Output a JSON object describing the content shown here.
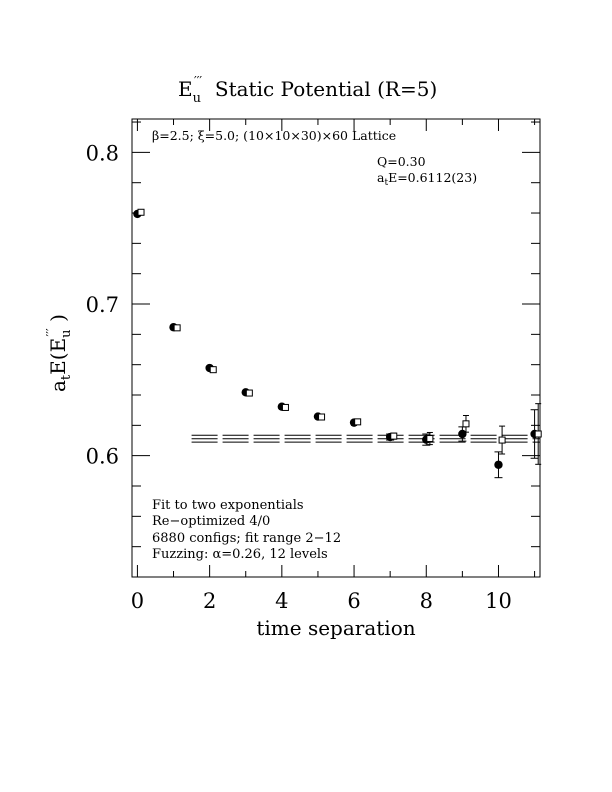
{
  "chart_data": {
    "type": "scatter",
    "title": {
      "main": "E",
      "sub": "u",
      "sup": "′′′",
      "rest": "  Static Potential (R=5)"
    },
    "xlabel": "time separation",
    "ylabel": {
      "prefix": "a",
      "prefix_sub": "t",
      "mid": "E(E",
      "sub": "u",
      "sup": "′′′",
      "suffix": " )"
    },
    "xlim": [
      -0.15,
      11.15
    ],
    "ylim": [
      0.52,
      0.822
    ],
    "x_ticks": [
      0,
      2,
      4,
      6,
      8,
      10
    ],
    "x_tick_labels": [
      "0",
      "2",
      "4",
      "6",
      "8",
      "10"
    ],
    "y_ticks": [
      0.6,
      0.7,
      0.8
    ],
    "y_tick_labels": [
      "0.6",
      "0.7",
      "0.8"
    ],
    "x_minor_step": 1,
    "y_minor_step": 0.02,
    "header_note": "β=2.5; ξ=5.0; (10×10×30)×60 Lattice",
    "fit_q": "Q=0.30",
    "fit_energy": {
      "prefix": "a",
      "sub": "t",
      "rest": "E=0.6112(23)"
    },
    "info_lines": [
      "Fit to two exponentials",
      "Re−optimized 4/0",
      "6880 configs; fit range 2−12",
      "Fuzzing: α=0.26, 12 levels"
    ],
    "series": [
      {
        "marker": "filled-circle",
        "x": [
          0,
          1,
          2,
          3,
          4,
          5,
          6,
          7,
          8,
          9,
          10,
          11
        ],
        "y": [
          0.7594,
          0.6847,
          0.6578,
          0.6418,
          0.6323,
          0.6258,
          0.6218,
          0.6123,
          0.6106,
          0.6143,
          0.594,
          0.6143
        ],
        "err": [
          0.0008,
          0.0008,
          0.0009,
          0.001,
          0.0012,
          0.0013,
          0.0015,
          0.002,
          0.0037,
          0.0047,
          0.0085,
          0.016
        ]
      },
      {
        "marker": "open-square",
        "x": [
          0.1,
          1.1,
          2.1,
          3.1,
          4.1,
          5.1,
          6.1,
          7.1,
          8.1,
          9.1,
          10.1,
          11.1
        ],
        "y": [
          0.7605,
          0.6843,
          0.6567,
          0.6413,
          0.6318,
          0.6255,
          0.6223,
          0.6129,
          0.6113,
          0.621,
          0.6103,
          0.6143
        ],
        "err": [
          0.0008,
          0.0008,
          0.0009,
          0.001,
          0.0012,
          0.0013,
          0.0015,
          0.002,
          0.004,
          0.0055,
          0.0092,
          0.02
        ]
      }
    ],
    "fit": {
      "x_start": 1.5,
      "x_end": 11.15,
      "value": 0.6112,
      "error": 0.0023
    }
  }
}
